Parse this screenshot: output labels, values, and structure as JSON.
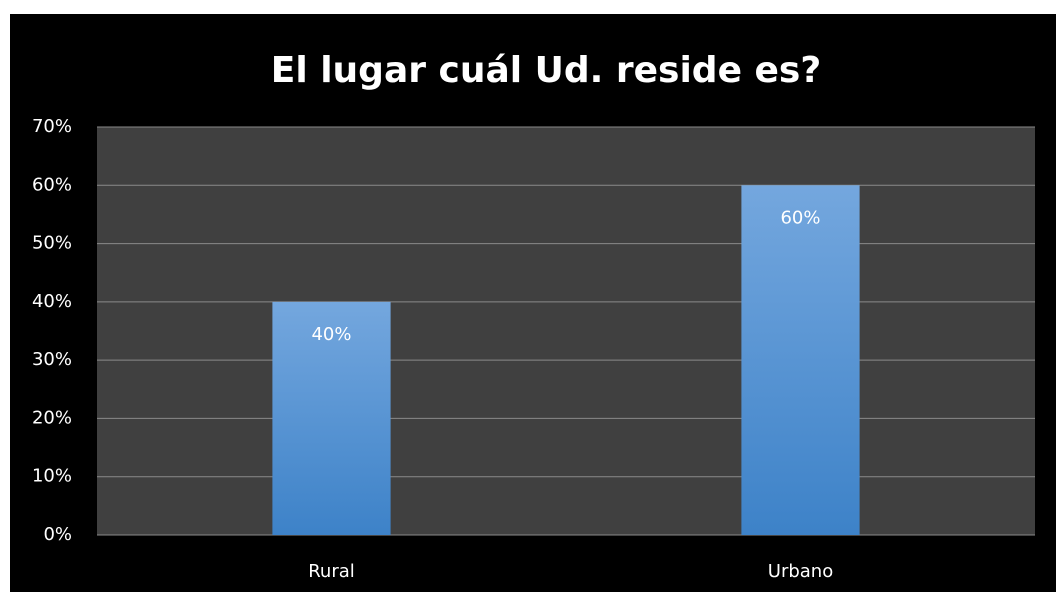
{
  "chart_data": {
    "type": "bar",
    "title": "El lugar cuál Ud. reside es?",
    "categories": [
      "Rural",
      "Urbano"
    ],
    "values": [
      40,
      60
    ],
    "value_labels": [
      "40%",
      "60%"
    ],
    "color": "#5b9bd5",
    "ylim": [
      0,
      70
    ],
    "yticks": [
      {
        "value": 0,
        "label": "0%"
      },
      {
        "value": 10,
        "label": "10%"
      },
      {
        "value": 20,
        "label": "20%"
      },
      {
        "value": 30,
        "label": "30%"
      },
      {
        "value": 40,
        "label": "40%"
      },
      {
        "value": 50,
        "label": "50%"
      },
      {
        "value": 60,
        "label": "60%"
      },
      {
        "value": 70,
        "label": "70%"
      }
    ],
    "grid": true
  }
}
